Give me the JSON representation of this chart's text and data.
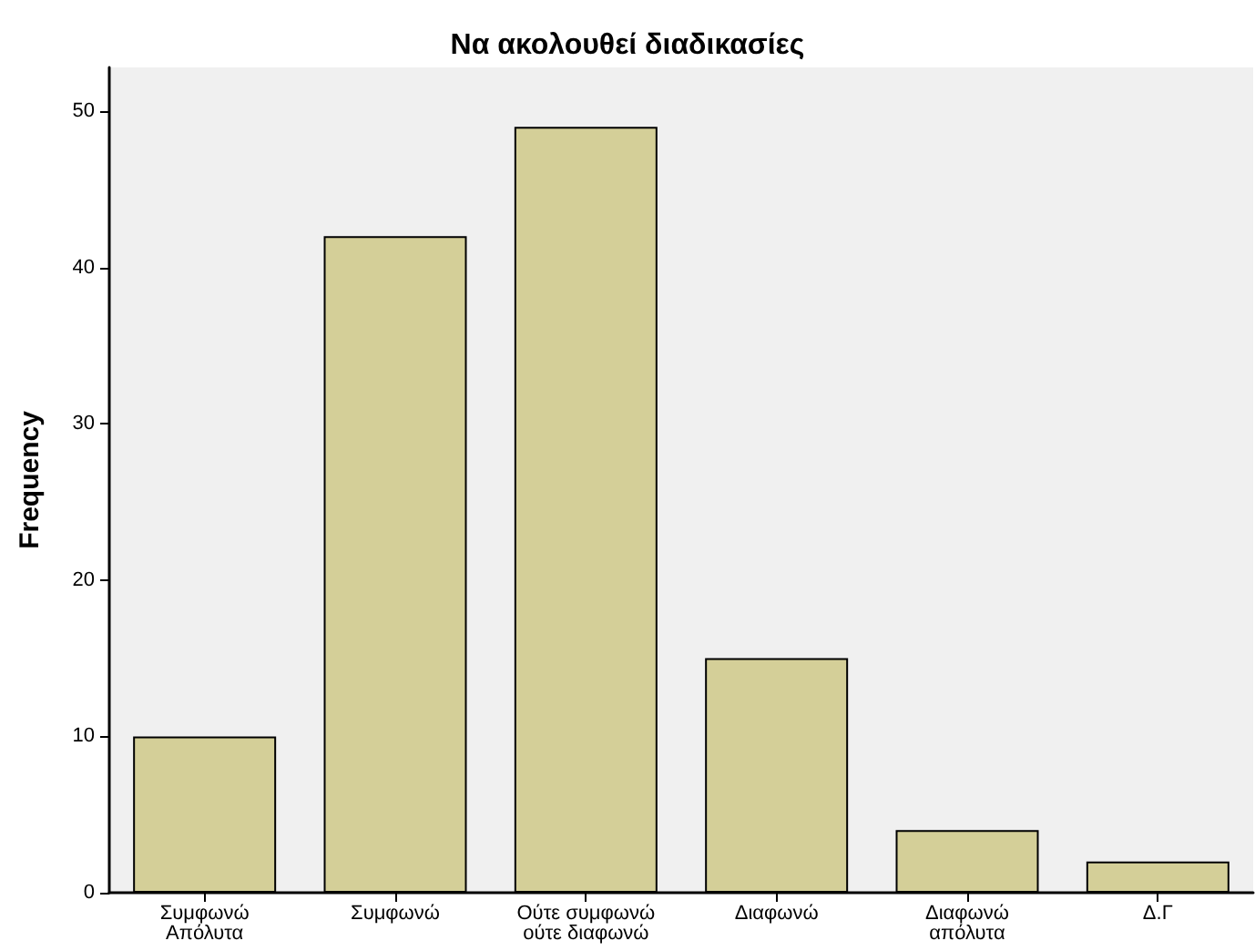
{
  "chart_data": {
    "type": "bar",
    "title": "Να ακολουθεί διαδικασίες",
    "ylabel": "Frequency",
    "categories": [
      "Συμφωνώ\nΑπόλυτα",
      "Συμφωνώ",
      "Ούτε συμφωνώ\nούτε διαφωνώ",
      "Διαφωνώ",
      "Διαφωνώ\nαπόλυτα",
      "Δ.Γ"
    ],
    "values": [
      10,
      42,
      49,
      15,
      4,
      2
    ],
    "color": "#d4cf98",
    "ylim": [
      0,
      52.8
    ],
    "yticks": [
      0,
      10,
      20,
      30,
      40,
      50
    ],
    "grid": false
  }
}
